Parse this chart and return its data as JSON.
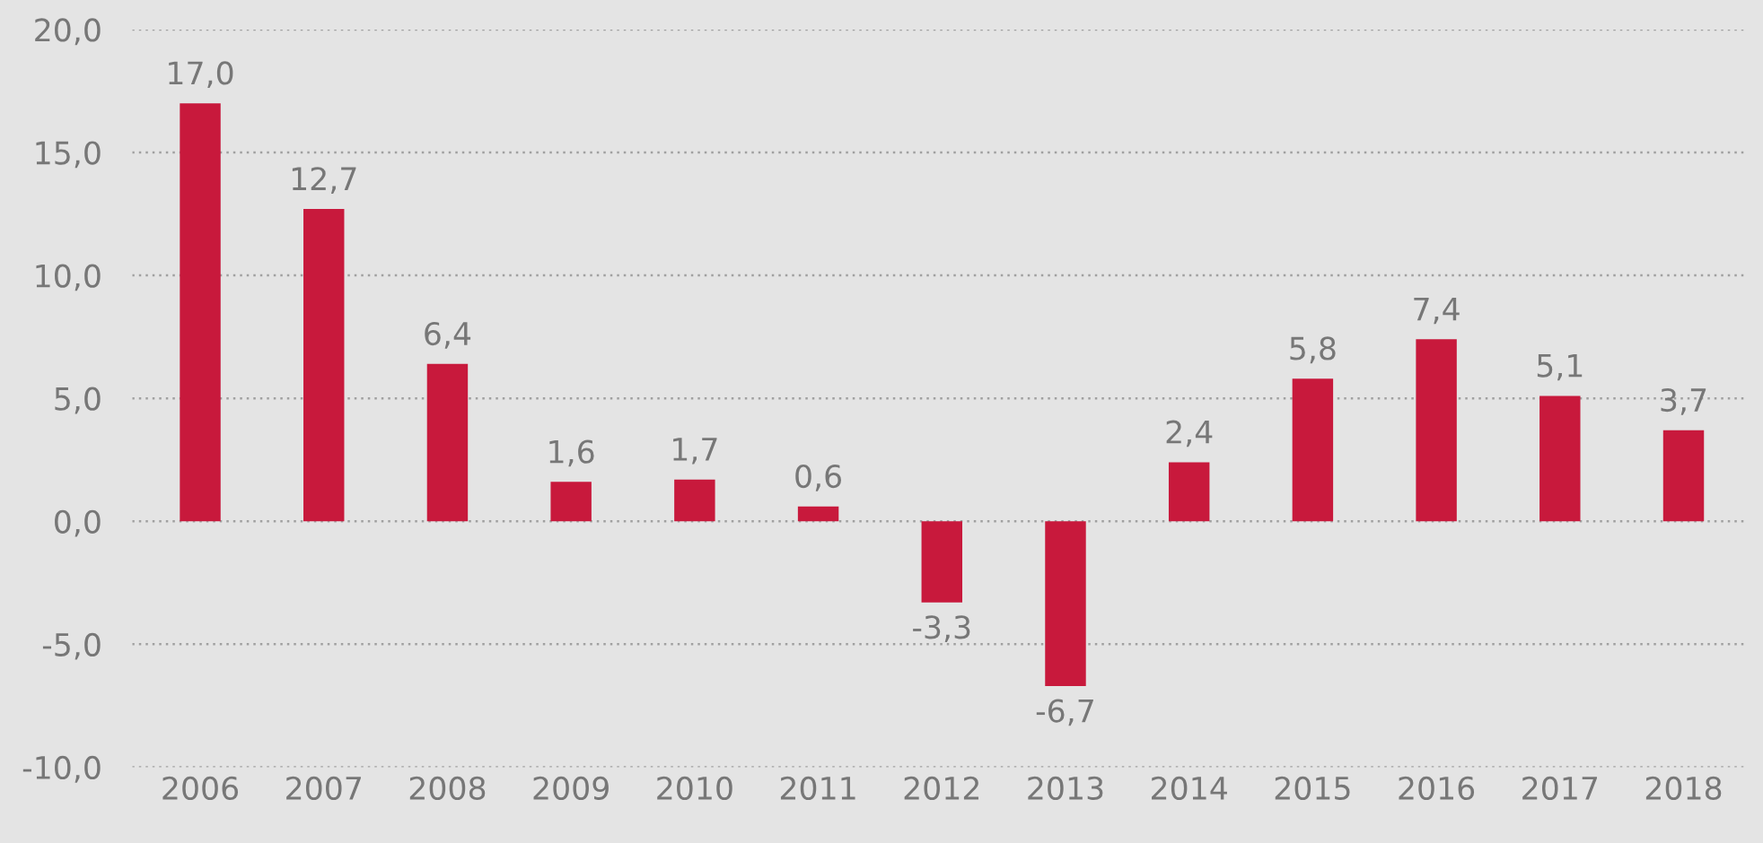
{
  "chart_data": {
    "type": "bar",
    "categories": [
      "2006",
      "2007",
      "2008",
      "2009",
      "2010",
      "2011",
      "2012",
      "2013",
      "2014",
      "2015",
      "2016",
      "2017",
      "2018"
    ],
    "values": [
      17.0,
      12.7,
      6.4,
      1.6,
      1.7,
      0.6,
      -3.3,
      -6.7,
      2.4,
      5.8,
      7.4,
      5.1,
      3.7
    ],
    "value_labels": [
      "17,0",
      "12,7",
      "6,4",
      "1,6",
      "1,7",
      "0,6",
      "-3,3",
      "-6,7",
      "2,4",
      "5,8",
      "7,4",
      "5,1",
      "3,7"
    ],
    "color": "#c8193c",
    "ylim": [
      -10,
      20
    ],
    "yticks": [
      {
        "value": -10,
        "label": "-10,0"
      },
      {
        "value": -5,
        "label": "-5,0"
      },
      {
        "value": 0,
        "label": "0,0"
      },
      {
        "value": 5,
        "label": "5,0"
      },
      {
        "value": 10,
        "label": "10,0"
      },
      {
        "value": 15,
        "label": "15,0"
      },
      {
        "value": 20,
        "label": "20,0"
      }
    ],
    "grid": "y",
    "legend": false
  }
}
